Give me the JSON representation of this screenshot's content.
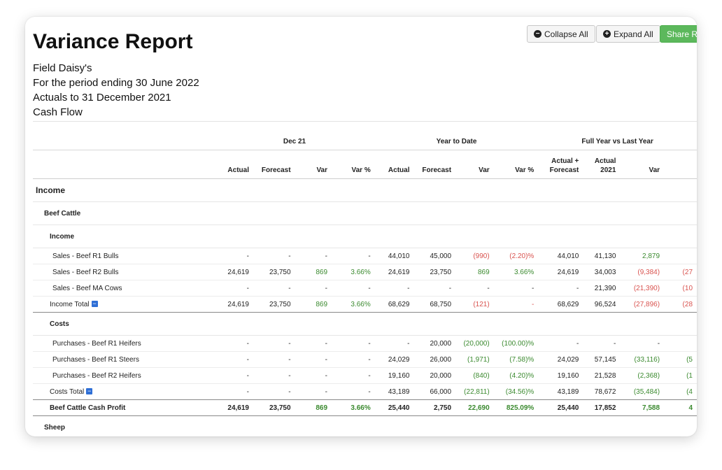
{
  "report": {
    "title": "Variance Report",
    "meta": [
      "Field Daisy's",
      "For the period ending 30 June 2022",
      "Actuals to 31 December 2021",
      "Cash Flow"
    ]
  },
  "toolbar": {
    "collapse_label": "Collapse All",
    "expand_label": "Expand All",
    "share_label": "Share Re"
  },
  "table": {
    "groups": [
      {
        "label": "",
        "span": 1
      },
      {
        "label": "Dec 21",
        "span": 4
      },
      {
        "label": "Year to Date",
        "span": 4
      },
      {
        "label": "Full Year vs Last Year",
        "span": 4
      }
    ],
    "columns": [
      {
        "h1": "",
        "h2": ""
      },
      {
        "h1": "",
        "h2": "Actual"
      },
      {
        "h1": "",
        "h2": "Forecast"
      },
      {
        "h1": "",
        "h2": "Var"
      },
      {
        "h1": "",
        "h2": "Var %"
      },
      {
        "h1": "",
        "h2": "Actual"
      },
      {
        "h1": "",
        "h2": "Forecast"
      },
      {
        "h1": "",
        "h2": "Var"
      },
      {
        "h1": "",
        "h2": "Var %"
      },
      {
        "h1": "Actual +",
        "h2": "Forecast"
      },
      {
        "h1": "Actual",
        "h2": "2021"
      },
      {
        "h1": "",
        "h2": "Var"
      },
      {
        "h1": "",
        "h2": ""
      }
    ],
    "rows": [
      {
        "type": "section",
        "level": 0,
        "label": "Income"
      },
      {
        "type": "section",
        "level": 1,
        "label": "Beef Cattle"
      },
      {
        "type": "section",
        "level": 2,
        "label": "Income"
      },
      {
        "type": "data",
        "label": "Sales - Beef R1 Bulls",
        "cells": [
          {
            "v": "-"
          },
          {
            "v": "-"
          },
          {
            "v": "-"
          },
          {
            "v": "-"
          },
          {
            "v": "44,010"
          },
          {
            "v": "45,000"
          },
          {
            "v": "(990)",
            "c": "neg"
          },
          {
            "v": "(2.20)%",
            "c": "neg"
          },
          {
            "v": "44,010"
          },
          {
            "v": "41,130"
          },
          {
            "v": "2,879",
            "c": "pos"
          },
          {
            "v": ""
          }
        ]
      },
      {
        "type": "data",
        "label": "Sales - Beef R2 Bulls",
        "cells": [
          {
            "v": "24,619"
          },
          {
            "v": "23,750"
          },
          {
            "v": "869",
            "c": "pos"
          },
          {
            "v": "3.66%",
            "c": "pos"
          },
          {
            "v": "24,619"
          },
          {
            "v": "23,750"
          },
          {
            "v": "869",
            "c": "pos"
          },
          {
            "v": "3.66%",
            "c": "pos"
          },
          {
            "v": "24,619"
          },
          {
            "v": "34,003"
          },
          {
            "v": "(9,384)",
            "c": "neg"
          },
          {
            "v": "(27",
            "c": "neg"
          }
        ]
      },
      {
        "type": "data",
        "label": "Sales - Beef MA Cows",
        "cells": [
          {
            "v": "-"
          },
          {
            "v": "-"
          },
          {
            "v": "-"
          },
          {
            "v": "-"
          },
          {
            "v": "-"
          },
          {
            "v": "-"
          },
          {
            "v": "-"
          },
          {
            "v": "-"
          },
          {
            "v": "-"
          },
          {
            "v": "21,390"
          },
          {
            "v": "(21,390)",
            "c": "neg"
          },
          {
            "v": "(10",
            "c": "neg"
          }
        ]
      },
      {
        "type": "total",
        "label": "Income Total",
        "cells": [
          {
            "v": "24,619"
          },
          {
            "v": "23,750"
          },
          {
            "v": "869",
            "c": "pos"
          },
          {
            "v": "3.66%",
            "c": "pos"
          },
          {
            "v": "68,629"
          },
          {
            "v": "68,750"
          },
          {
            "v": "(121)",
            "c": "neg"
          },
          {
            "v": "-",
            "c": "neg"
          },
          {
            "v": "68,629"
          },
          {
            "v": "96,524"
          },
          {
            "v": "(27,896)",
            "c": "neg"
          },
          {
            "v": "(28",
            "c": "neg"
          }
        ]
      },
      {
        "type": "section",
        "level": 2,
        "label": "Costs"
      },
      {
        "type": "data",
        "label": "Purchases - Beef R1 Heifers",
        "cells": [
          {
            "v": "-"
          },
          {
            "v": "-"
          },
          {
            "v": "-"
          },
          {
            "v": "-"
          },
          {
            "v": "-"
          },
          {
            "v": "20,000"
          },
          {
            "v": "(20,000)",
            "c": "pos"
          },
          {
            "v": "(100.00)%",
            "c": "pos"
          },
          {
            "v": "-"
          },
          {
            "v": "-"
          },
          {
            "v": "-"
          },
          {
            "v": ""
          }
        ]
      },
      {
        "type": "data",
        "label": "Purchases - Beef R1 Steers",
        "cells": [
          {
            "v": "-"
          },
          {
            "v": "-"
          },
          {
            "v": "-"
          },
          {
            "v": "-"
          },
          {
            "v": "24,029"
          },
          {
            "v": "26,000"
          },
          {
            "v": "(1,971)",
            "c": "pos"
          },
          {
            "v": "(7.58)%",
            "c": "pos"
          },
          {
            "v": "24,029"
          },
          {
            "v": "57,145"
          },
          {
            "v": "(33,116)",
            "c": "pos"
          },
          {
            "v": "(5",
            "c": "pos"
          }
        ]
      },
      {
        "type": "data",
        "label": "Purchases - Beef R2 Heifers",
        "cells": [
          {
            "v": "-"
          },
          {
            "v": "-"
          },
          {
            "v": "-"
          },
          {
            "v": "-"
          },
          {
            "v": "19,160"
          },
          {
            "v": "20,000"
          },
          {
            "v": "(840)",
            "c": "pos"
          },
          {
            "v": "(4.20)%",
            "c": "pos"
          },
          {
            "v": "19,160"
          },
          {
            "v": "21,528"
          },
          {
            "v": "(2,368)",
            "c": "pos"
          },
          {
            "v": "(1",
            "c": "pos"
          }
        ]
      },
      {
        "type": "total",
        "label": "Costs Total",
        "cells": [
          {
            "v": "-"
          },
          {
            "v": "-"
          },
          {
            "v": "-"
          },
          {
            "v": "-"
          },
          {
            "v": "43,189"
          },
          {
            "v": "66,000"
          },
          {
            "v": "(22,811)",
            "c": "pos"
          },
          {
            "v": "(34.56)%",
            "c": "pos"
          },
          {
            "v": "43,189"
          },
          {
            "v": "78,672"
          },
          {
            "v": "(35,484)",
            "c": "pos"
          },
          {
            "v": "(4",
            "c": "pos"
          }
        ]
      },
      {
        "type": "profit",
        "label": "Beef Cattle Cash Profit",
        "cells": [
          {
            "v": "24,619"
          },
          {
            "v": "23,750"
          },
          {
            "v": "869",
            "c": "pos"
          },
          {
            "v": "3.66%",
            "c": "pos"
          },
          {
            "v": "25,440"
          },
          {
            "v": "2,750"
          },
          {
            "v": "22,690",
            "c": "pos"
          },
          {
            "v": "825.09%",
            "c": "pos"
          },
          {
            "v": "25,440"
          },
          {
            "v": "17,852"
          },
          {
            "v": "7,588",
            "c": "pos"
          },
          {
            "v": "4",
            "c": "pos"
          }
        ]
      },
      {
        "type": "section",
        "level": 1,
        "label": "Sheep"
      }
    ]
  }
}
